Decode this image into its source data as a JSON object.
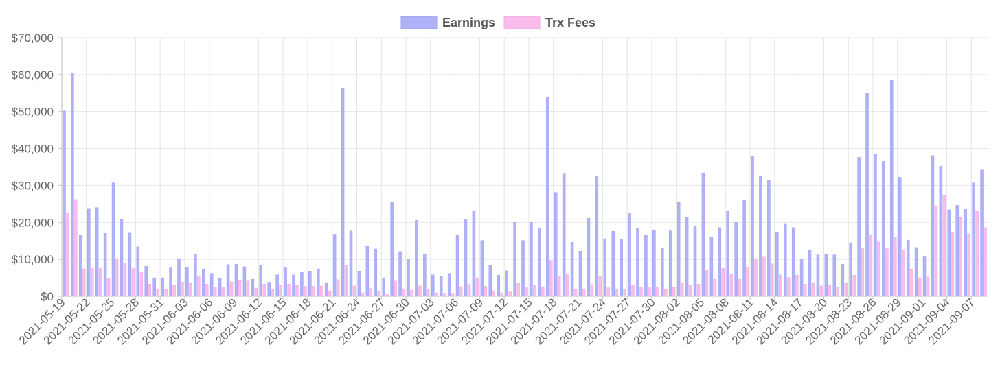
{
  "chart_data": {
    "type": "bar",
    "x": [
      "2021-05-19",
      "2021-05-20",
      "2021-05-21",
      "2021-05-22",
      "2021-05-23",
      "2021-05-24",
      "2021-05-25",
      "2021-05-26",
      "2021-05-27",
      "2021-05-28",
      "2021-05-29",
      "2021-05-30",
      "2021-05-31",
      "2021-06-01",
      "2021-06-02",
      "2021-06-03",
      "2021-06-04",
      "2021-06-05",
      "2021-06-06",
      "2021-06-07",
      "2021-06-08",
      "2021-06-09",
      "2021-06-10",
      "2021-06-11",
      "2021-06-12",
      "2021-06-13",
      "2021-06-14",
      "2021-06-15",
      "2021-06-16",
      "2021-06-17",
      "2021-06-18",
      "2021-06-19",
      "2021-06-20",
      "2021-06-21",
      "2021-06-22",
      "2021-06-23",
      "2021-06-24",
      "2021-06-25",
      "2021-06-26",
      "2021-06-27",
      "2021-06-28",
      "2021-06-29",
      "2021-06-30",
      "2021-07-01",
      "2021-07-02",
      "2021-07-03",
      "2021-07-04",
      "2021-07-05",
      "2021-07-06",
      "2021-07-07",
      "2021-07-08",
      "2021-07-09",
      "2021-07-10",
      "2021-07-11",
      "2021-07-12",
      "2021-07-13",
      "2021-07-14",
      "2021-07-15",
      "2021-07-16",
      "2021-07-17",
      "2021-07-18",
      "2021-07-19",
      "2021-07-20",
      "2021-07-21",
      "2021-07-22",
      "2021-07-23",
      "2021-07-24",
      "2021-07-25",
      "2021-07-26",
      "2021-07-27",
      "2021-07-28",
      "2021-07-29",
      "2021-07-30",
      "2021-07-31",
      "2021-08-01",
      "2021-08-02",
      "2021-08-03",
      "2021-08-04",
      "2021-08-05",
      "2021-08-06",
      "2021-08-07",
      "2021-08-08",
      "2021-08-09",
      "2021-08-10",
      "2021-08-11",
      "2021-08-12",
      "2021-08-13",
      "2021-08-14",
      "2021-08-15",
      "2021-08-16",
      "2021-08-17",
      "2021-08-18",
      "2021-08-19",
      "2021-08-20",
      "2021-08-21",
      "2021-08-22",
      "2021-08-23",
      "2021-08-24",
      "2021-08-25",
      "2021-08-26",
      "2021-08-27",
      "2021-08-28",
      "2021-08-29",
      "2021-08-30",
      "2021-08-31",
      "2021-09-01",
      "2021-09-02",
      "2021-09-03",
      "2021-09-04",
      "2021-09-05",
      "2021-09-06",
      "2021-09-07",
      "2021-09-08"
    ],
    "xtick_labels": [
      "2021-05-19",
      "2021-05-22",
      "2021-05-25",
      "2021-05-28",
      "2021-05-31",
      "2021-06-03",
      "2021-06-06",
      "2021-06-09",
      "2021-06-12",
      "2021-06-15",
      "2021-06-18",
      "2021-06-21",
      "2021-06-24",
      "2021-06-27",
      "2021-06-30",
      "2021-07-03",
      "2021-07-06",
      "2021-07-09",
      "2021-07-12",
      "2021-07-15",
      "2021-07-18",
      "2021-07-21",
      "2021-07-24",
      "2021-07-27",
      "2021-07-30",
      "2021-08-02",
      "2021-08-05",
      "2021-08-08",
      "2021-08-11",
      "2021-08-14",
      "2021-08-17",
      "2021-08-20",
      "2021-08-23",
      "2021-08-26",
      "2021-08-29",
      "2021-09-01",
      "2021-09-04",
      "2021-09-07"
    ],
    "ytick_labels": [
      "$0",
      "$10,000",
      "$20,000",
      "$30,000",
      "$40,000",
      "$50,000",
      "$60,000",
      "$70,000"
    ],
    "ylim": [
      0,
      70000
    ],
    "ytick_step": 10000,
    "grid": true,
    "legend_position": "top-center",
    "series": [
      {
        "name": "Earnings",
        "color": "#b0b2f7",
        "stroke": "#9ea0f3",
        "values": [
          50200,
          60400,
          16600,
          23600,
          24000,
          17000,
          30700,
          20800,
          17100,
          13400,
          8100,
          5000,
          5000,
          7700,
          10200,
          7900,
          11400,
          7400,
          6200,
          4900,
          8600,
          8700,
          8000,
          4600,
          8500,
          3800,
          5800,
          7700,
          5800,
          6500,
          6800,
          7400,
          3700,
          16800,
          56400,
          17700,
          6800,
          13500,
          12800,
          5000,
          25500,
          12100,
          10100,
          20600,
          11400,
          5800,
          5500,
          6200,
          16500,
          20700,
          23200,
          15100,
          8400,
          5700,
          6900,
          20000,
          15100,
          20000,
          18300,
          53800,
          28100,
          33100,
          14600,
          12200,
          21100,
          32400,
          15600,
          17600,
          15400,
          22600,
          18500,
          16600,
          17800,
          13100,
          17700,
          25400,
          21400,
          18900,
          33400,
          16000,
          18600,
          23000,
          20200,
          26000,
          38000,
          32500,
          31300,
          17400,
          19700,
          18600,
          10100,
          12500,
          11200,
          11300,
          11200,
          8700,
          14500,
          37600,
          55000,
          38400,
          36500,
          58600,
          32200,
          15200,
          13200,
          10900,
          38100,
          35200,
          23400,
          24600,
          23500,
          30700,
          34200
        ]
      },
      {
        "name": "Trx Fees",
        "color": "#f9bdec",
        "stroke": "#f5a8e3",
        "values": [
          22400,
          26200,
          7400,
          7600,
          7600,
          4900,
          10100,
          9000,
          7500,
          6400,
          3300,
          2000,
          2000,
          3100,
          3800,
          3500,
          5300,
          3300,
          2500,
          2400,
          3900,
          4400,
          4100,
          2200,
          3300,
          1900,
          2900,
          3300,
          2900,
          2700,
          2700,
          2800,
          1500,
          4500,
          8500,
          2800,
          900,
          2100,
          1400,
          700,
          4100,
          1900,
          1600,
          2800,
          1800,
          900,
          800,
          800,
          2600,
          3200,
          5000,
          2700,
          1500,
          900,
          1200,
          3500,
          2300,
          3100,
          2600,
          9700,
          5500,
          6000,
          2000,
          1800,
          3200,
          5300,
          2300,
          2000,
          2000,
          2900,
          2400,
          2300,
          2500,
          1800,
          2400,
          3700,
          2900,
          3300,
          7100,
          4600,
          7600,
          5900,
          4600,
          7800,
          10100,
          10600,
          8800,
          5800,
          5100,
          5700,
          3300,
          3700,
          2800,
          3000,
          2400,
          3700,
          5700,
          13100,
          16500,
          14700,
          12900,
          16100,
          12600,
          7400,
          5000,
          5200,
          24500,
          27400,
          17400,
          21300,
          16900,
          23100,
          18600
        ]
      }
    ]
  }
}
